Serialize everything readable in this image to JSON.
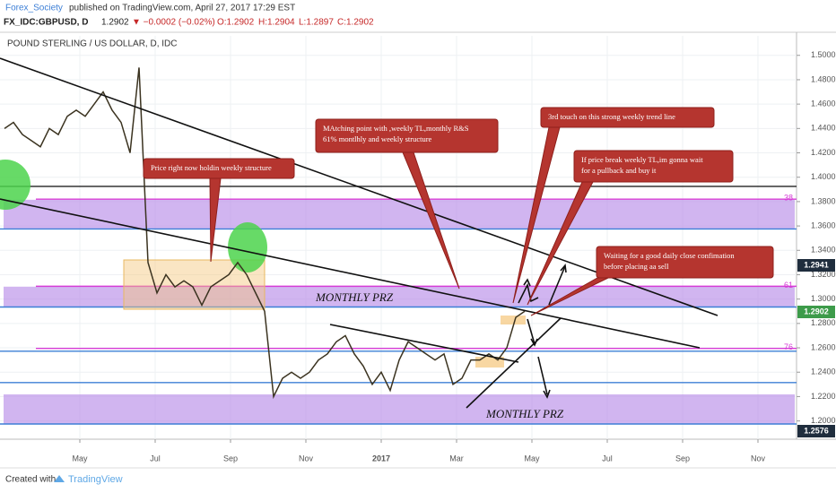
{
  "header": {
    "publisher": "Forex_Society",
    "published": "published on TradingView.com, April 27, 2017 17:29 EST",
    "symbol": "FX_IDC:GBPUSD, D",
    "last": "1.2902",
    "change": "▼ −0.0002 (−0.02%)",
    "ohlc": [
      "O:1.2902",
      "H:1.2904",
      "L:1.2897",
      "C:1.2902"
    ]
  },
  "chart_data": {
    "type": "line",
    "title": "POUND STERLING / US DOLLAR, D, IDC",
    "color": "#3b3320",
    "values": [
      1.44,
      1.445,
      1.435,
      1.43,
      1.425,
      1.44,
      1.435,
      1.45,
      1.455,
      1.45,
      1.46,
      1.47,
      1.455,
      1.445,
      1.42,
      1.49,
      1.33,
      1.305,
      1.32,
      1.31,
      1.315,
      1.31,
      1.295,
      1.31,
      1.315,
      1.32,
      1.33,
      1.32,
      1.305,
      1.29,
      1.22,
      1.235,
      1.24,
      1.235,
      1.24,
      1.25,
      1.255,
      1.265,
      1.27,
      1.255,
      1.245,
      1.23,
      1.24,
      1.225,
      1.25,
      1.265,
      1.26,
      1.255,
      1.25,
      1.255,
      1.23,
      1.235,
      1.25,
      1.25,
      1.255,
      1.25,
      1.26,
      1.285,
      1.29
    ],
    "ylim": [
      1.185,
      1.516
    ],
    "yticks": [
      {
        "value": 1.5,
        "label": "1.5000"
      },
      {
        "value": 1.48,
        "label": "1.4800"
      },
      {
        "value": 1.46,
        "label": "1.4600"
      },
      {
        "value": 1.44,
        "label": "1.4400"
      },
      {
        "value": 1.42,
        "label": "1.4200"
      },
      {
        "value": 1.4,
        "label": "1.4000"
      },
      {
        "value": 1.38,
        "label": "1.3800"
      },
      {
        "value": 1.36,
        "label": "1.3600"
      },
      {
        "value": 1.34,
        "label": "1.3400"
      },
      {
        "value": 1.32,
        "label": "1.3200"
      },
      {
        "value": 1.3,
        "label": "1.3000"
      },
      {
        "value": 1.28,
        "label": "1.2800"
      },
      {
        "value": 1.26,
        "label": "1.2600"
      },
      {
        "value": 1.24,
        "label": "1.2400"
      },
      {
        "value": 1.22,
        "label": "1.2200"
      },
      {
        "value": 1.2,
        "label": "1.2000"
      }
    ],
    "xtick_labels": [
      "May",
      "Jul",
      "Sep",
      "Nov",
      "2017",
      "Mar",
      "May",
      "Jul",
      "Sep",
      "Nov"
    ],
    "grid": true,
    "zones": [
      [
        1.3815,
        1.3575
      ],
      [
        1.3102,
        1.2932
      ],
      [
        1.2218,
        1.1976
      ]
    ],
    "levels": [
      {
        "value": 1.3925,
        "color": "#222222"
      },
      {
        "value": 1.382,
        "color": "#d63bd6",
        "label": "38"
      },
      {
        "value": 1.3575,
        "color": "#3d7fd6"
      },
      {
        "value": 1.3105,
        "color": "#d63bd6",
        "label": "61"
      },
      {
        "value": 1.2935,
        "color": "#3d7fd6"
      },
      {
        "value": 1.2595,
        "color": "#d63bd6",
        "label": "76"
      },
      {
        "value": 1.2572,
        "color": "#3d7fd6"
      },
      {
        "value": 1.2315,
        "color": "#3d7fd6"
      },
      {
        "value": 1.1975,
        "color": "#3d7fd6"
      }
    ],
    "price_badges": [
      {
        "label": "1.2941",
        "color": "#1f2d3d"
      },
      {
        "label": "1.2902",
        "color": "#3d9b4a"
      },
      {
        "label": "1.2576",
        "color": "#1f2d3d"
      }
    ],
    "annotations": [
      [
        "Price right now holdin weekly structure"
      ],
      [
        "MAtching point with ,weekly TL,monthly R&S",
        "61% montlhly and weekly structure"
      ],
      [
        "3rd touch on this strong weekly trend line"
      ],
      [
        "If price break weekly TL,im gonna wait",
        "for a pullback and buy it"
      ],
      [
        "Waiting for a good daily close confimation",
        "before placing aa sell"
      ]
    ],
    "zone_labels": [
      "MONTHLY PRZ",
      "MONTHLY PRZ"
    ]
  },
  "footer": {
    "created": "Created with",
    "brand": "TradingView"
  }
}
